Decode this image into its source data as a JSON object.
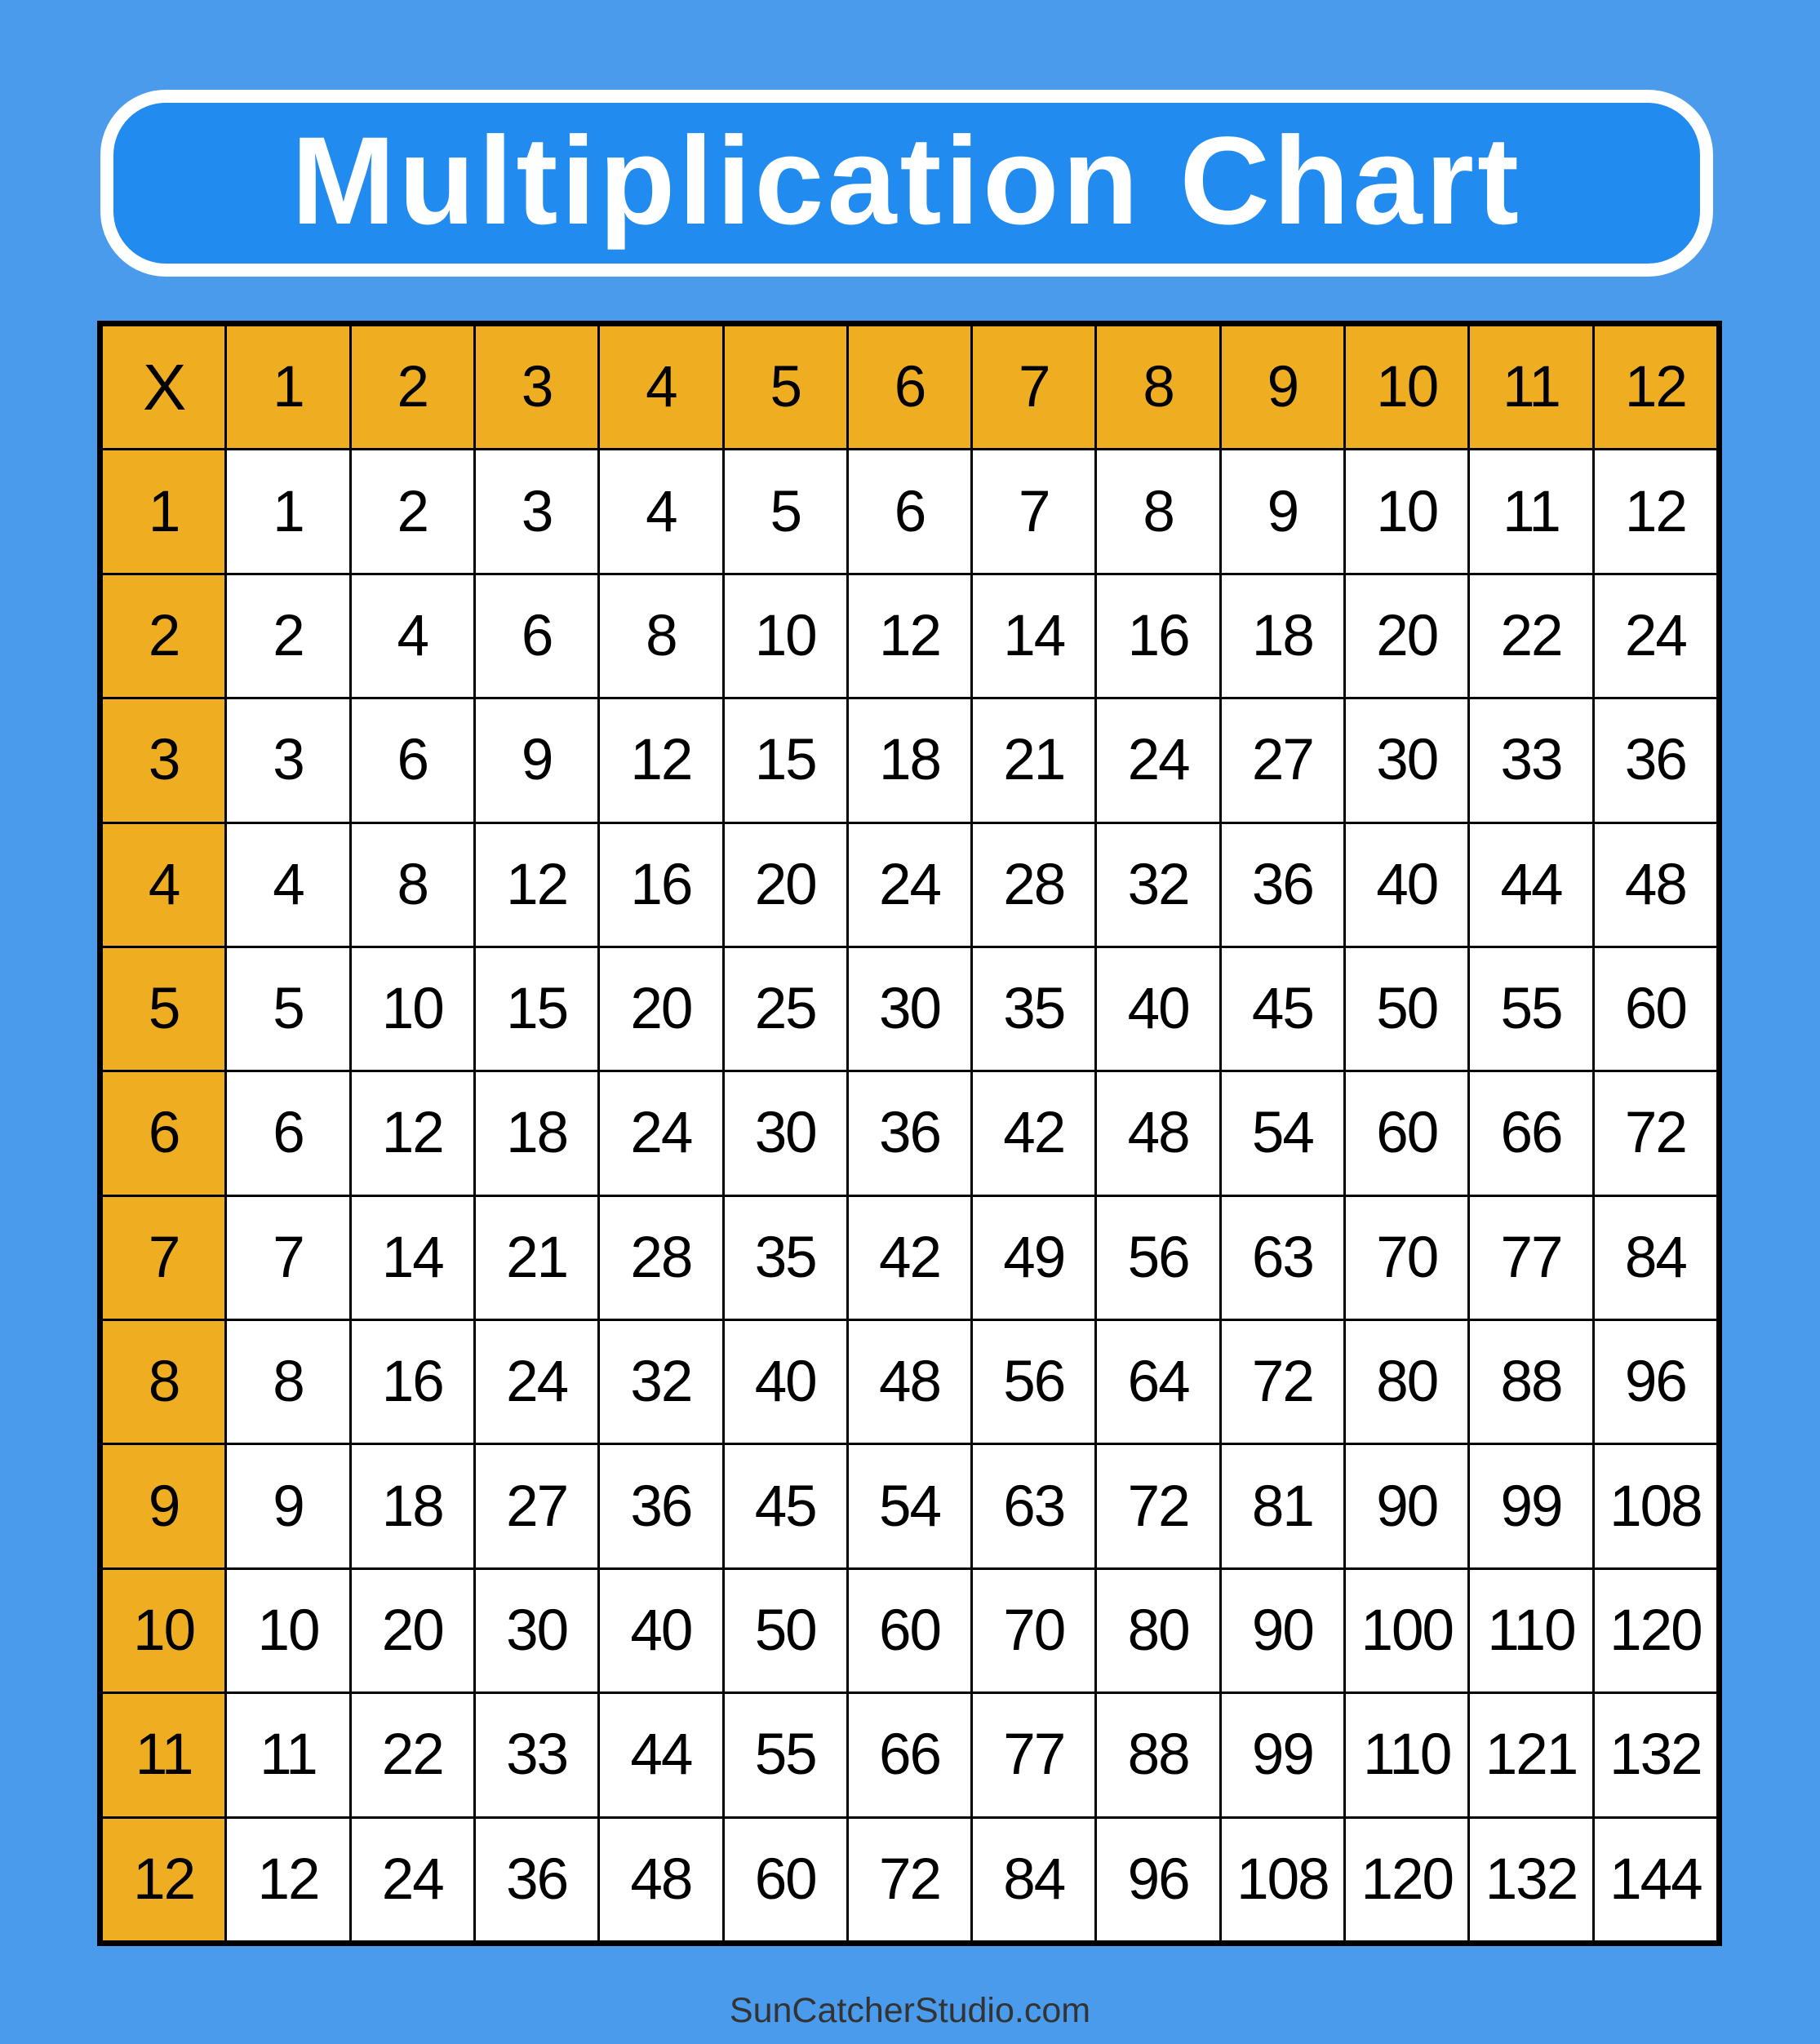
{
  "title": "Multiplication Chart",
  "footer": "SunCatcherStudio.com",
  "colors": {
    "background": "#4a9bec",
    "title_box": "#218bef",
    "header": "#efae22",
    "cell": "#ffffff",
    "grid": "#000000"
  },
  "chart_data": {
    "type": "table",
    "corner": "X",
    "columns": [
      "1",
      "2",
      "3",
      "4",
      "5",
      "6",
      "7",
      "8",
      "9",
      "10",
      "11",
      "12"
    ],
    "rows": [
      {
        "label": "1",
        "values": [
          "1",
          "2",
          "3",
          "4",
          "5",
          "6",
          "7",
          "8",
          "9",
          "10",
          "11",
          "12"
        ]
      },
      {
        "label": "2",
        "values": [
          "2",
          "4",
          "6",
          "8",
          "10",
          "12",
          "14",
          "16",
          "18",
          "20",
          "22",
          "24"
        ]
      },
      {
        "label": "3",
        "values": [
          "3",
          "6",
          "9",
          "12",
          "15",
          "18",
          "21",
          "24",
          "27",
          "30",
          "33",
          "36"
        ]
      },
      {
        "label": "4",
        "values": [
          "4",
          "8",
          "12",
          "16",
          "20",
          "24",
          "28",
          "32",
          "36",
          "40",
          "44",
          "48"
        ]
      },
      {
        "label": "5",
        "values": [
          "5",
          "10",
          "15",
          "20",
          "25",
          "30",
          "35",
          "40",
          "45",
          "50",
          "55",
          "60"
        ]
      },
      {
        "label": "6",
        "values": [
          "6",
          "12",
          "18",
          "24",
          "30",
          "36",
          "42",
          "48",
          "54",
          "60",
          "66",
          "72"
        ]
      },
      {
        "label": "7",
        "values": [
          "7",
          "14",
          "21",
          "28",
          "35",
          "42",
          "49",
          "56",
          "63",
          "70",
          "77",
          "84"
        ]
      },
      {
        "label": "8",
        "values": [
          "8",
          "16",
          "24",
          "32",
          "40",
          "48",
          "56",
          "64",
          "72",
          "80",
          "88",
          "96"
        ]
      },
      {
        "label": "9",
        "values": [
          "9",
          "18",
          "27",
          "36",
          "45",
          "54",
          "63",
          "72",
          "81",
          "90",
          "99",
          "108"
        ]
      },
      {
        "label": "10",
        "values": [
          "10",
          "20",
          "30",
          "40",
          "50",
          "60",
          "70",
          "80",
          "90",
          "100",
          "110",
          "120"
        ]
      },
      {
        "label": "11",
        "values": [
          "11",
          "22",
          "33",
          "44",
          "55",
          "66",
          "77",
          "88",
          "99",
          "110",
          "121",
          "132"
        ]
      },
      {
        "label": "12",
        "values": [
          "12",
          "24",
          "36",
          "48",
          "60",
          "72",
          "84",
          "96",
          "108",
          "120",
          "132",
          "144"
        ]
      }
    ]
  }
}
